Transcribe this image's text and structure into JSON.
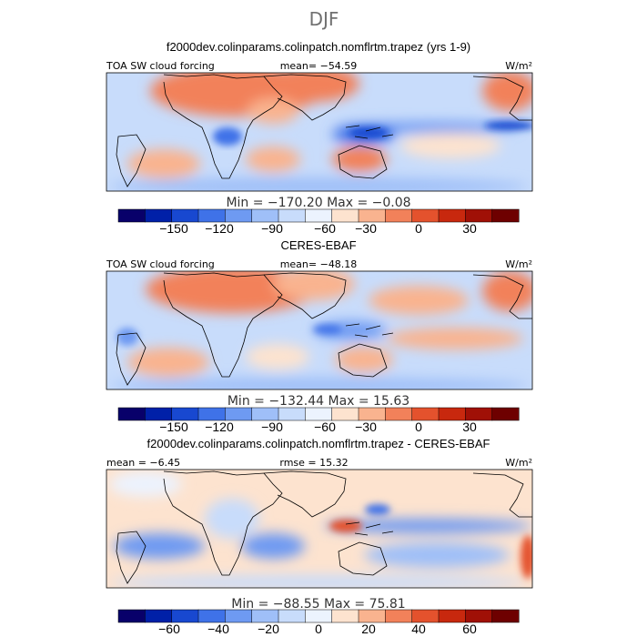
{
  "page_title": "DJF",
  "panels": [
    {
      "heading": "f2000dev.colinparams.colinpatch.nomflrtm.trapez (yrs 1-9)",
      "left_label": "TOA SW cloud forcing",
      "center_label": "mean=  −54.59",
      "units": "W/m²",
      "minmax": "Min = −170.20  Max =  −0.08",
      "colorbar_ticks": [
        "−150",
        "−120",
        "−90",
        "−60",
        "−30",
        "0",
        "30"
      ]
    },
    {
      "heading": "CERES-EBAF",
      "left_label": "TOA SW cloud forcing",
      "center_label": "mean=  −48.18",
      "units": "W/m²",
      "minmax": "Min = −132.44  Max =  15.63",
      "colorbar_ticks": [
        "−150",
        "−120",
        "−90",
        "−60",
        "−30",
        "0",
        "30"
      ]
    },
    {
      "heading": "f2000dev.colinparams.colinpatch.nomflrtm.trapez - CERES-EBAF",
      "left_label": "mean =  −6.45",
      "center_label": "rmse =  15.32",
      "units": "W/m²",
      "minmax": "Min = −88.55  Max =  75.81",
      "colorbar_ticks": [
        "−60",
        "−40",
        "−20",
        "0",
        "20",
        "40",
        "60"
      ]
    }
  ],
  "chart_data": [
    {
      "type": "heatmap",
      "title": "f2000dev.colinparams.colinpatch.nomflrtm.trapez (yrs 1-9)",
      "field": "TOA SW cloud forcing",
      "units": "W/m2",
      "mean": -54.59,
      "min": -170.2,
      "max": -0.08,
      "colorbar_levels": [
        -165,
        -150,
        -135,
        -120,
        -105,
        -90,
        -75,
        -60,
        -45,
        -30,
        -15,
        0,
        15,
        30,
        45
      ],
      "colorbar_ticks": [
        -150,
        -120,
        -90,
        -60,
        -30,
        0,
        30
      ]
    },
    {
      "type": "heatmap",
      "title": "CERES-EBAF",
      "field": "TOA SW cloud forcing",
      "units": "W/m2",
      "mean": -48.18,
      "min": -132.44,
      "max": 15.63,
      "colorbar_levels": [
        -165,
        -150,
        -135,
        -120,
        -105,
        -90,
        -75,
        -60,
        -45,
        -30,
        -15,
        0,
        15,
        30,
        45
      ],
      "colorbar_ticks": [
        -150,
        -120,
        -90,
        -60,
        -30,
        0,
        30
      ]
    },
    {
      "type": "heatmap",
      "title": "f2000dev.colinparams.colinpatch.nomflrtm.trapez - CERES-EBAF",
      "units": "W/m2",
      "mean": -6.45,
      "rmse": 15.32,
      "min": -88.55,
      "max": 75.81,
      "colorbar_levels": [
        -70,
        -60,
        -50,
        -40,
        -30,
        -20,
        -10,
        0,
        10,
        20,
        30,
        40,
        50,
        60,
        70
      ],
      "colorbar_ticks": [
        -60,
        -40,
        -20,
        0,
        20,
        40,
        60
      ]
    }
  ],
  "colors": {
    "palette": [
      "#08006a",
      "#0020a8",
      "#1848d0",
      "#3f72e8",
      "#6e9af2",
      "#9fbff8",
      "#c8dcfb",
      "#ecf3fe",
      "#fde3cf",
      "#f9b38f",
      "#f2815a",
      "#e4522d",
      "#c8280e",
      "#a01006",
      "#6e0000"
    ]
  }
}
